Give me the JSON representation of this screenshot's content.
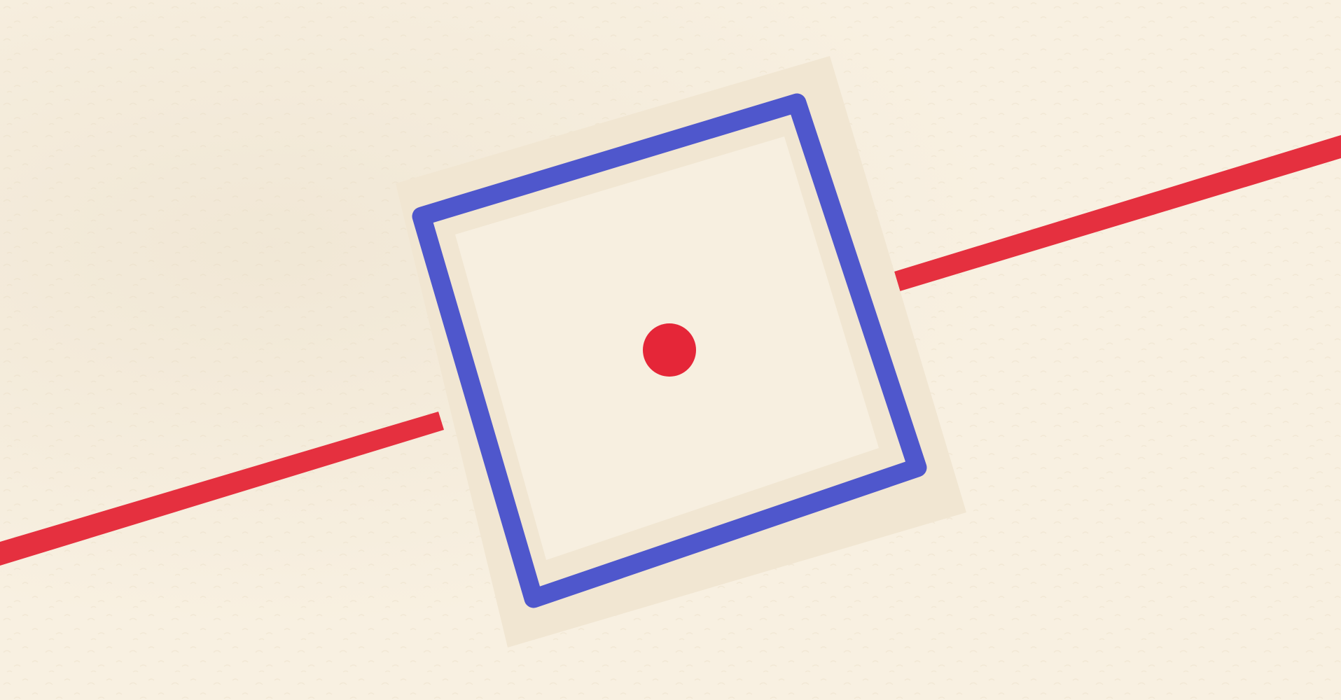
{
  "colors": {
    "background": "#f8f0e1",
    "background_speckle": "#ece1cc",
    "vignette": "#e3d7c0",
    "frame_shadow": "#f1e6d2",
    "frame_inner": "#f7efe0",
    "frame_border": "#4f57cc",
    "laser_line": "#e5303f",
    "target_dot": "#e52638"
  },
  "icons": {
    "frame": "rotated-square-frame-icon",
    "dot": "target-dot-icon",
    "beam": "laser-line-icon"
  }
}
